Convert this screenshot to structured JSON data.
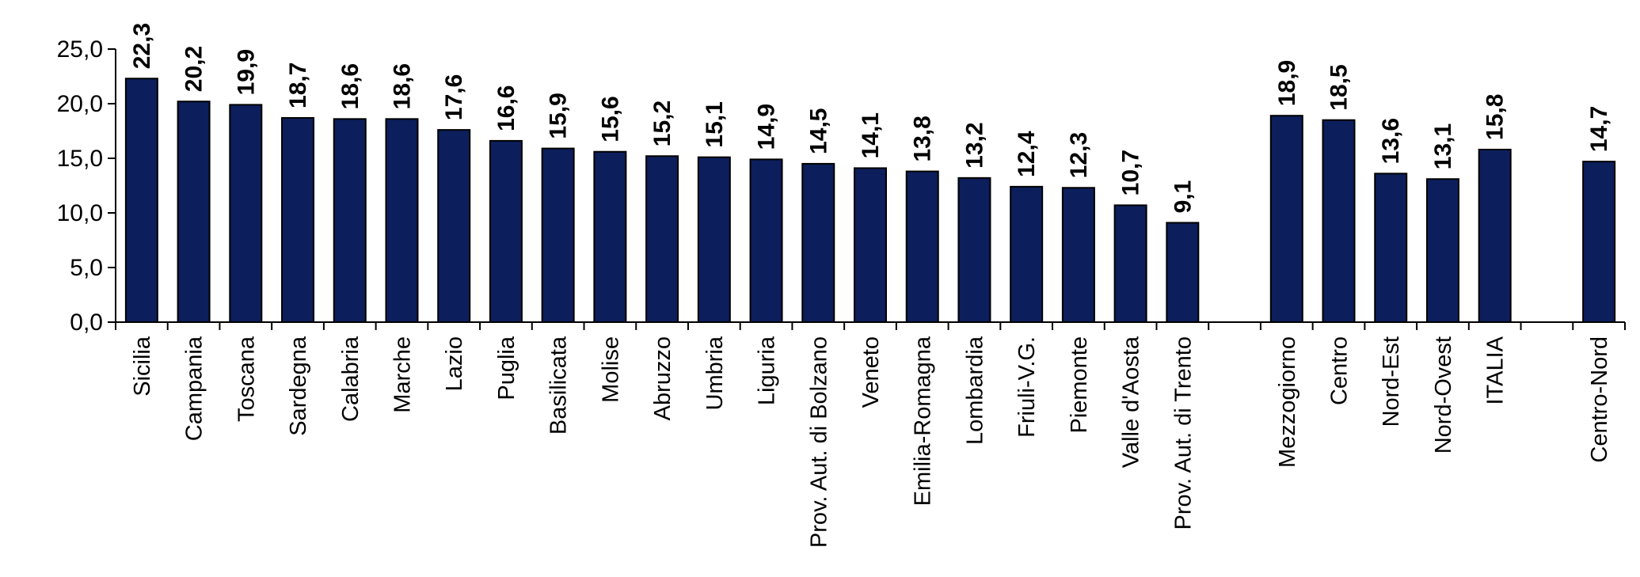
{
  "chart_data": {
    "type": "bar",
    "categories": [
      "Sicilia",
      "Campania",
      "Toscana",
      "Sardegna",
      "Calabria",
      "Marche",
      "Lazio",
      "Puglia",
      "Basilicata",
      "Molise",
      "Abruzzo",
      "Umbria",
      "Liguria",
      "Prov. Aut. di Bolzano",
      "Veneto",
      "Emilia-Romagna",
      "Lombardia",
      "Friuli-V.G.",
      "Piemonte",
      "Valle d'Aosta",
      "Prov. Aut. di Trento",
      "",
      "Mezzogiorno",
      "Centro",
      "Nord-Est",
      "Nord-Ovest",
      "ITALIA",
      "",
      "Centro-Nord"
    ],
    "values": [
      22.3,
      20.2,
      19.9,
      18.7,
      18.6,
      18.6,
      17.6,
      16.6,
      15.9,
      15.6,
      15.2,
      15.1,
      14.9,
      14.5,
      14.1,
      13.8,
      13.2,
      12.4,
      12.3,
      10.7,
      9.1,
      null,
      18.9,
      18.5,
      13.6,
      13.1,
      15.8,
      null,
      14.7
    ],
    "value_labels": [
      "22,3",
      "20,2",
      "19,9",
      "18,7",
      "18,6",
      "18,6",
      "17,6",
      "16,6",
      "15,9",
      "15,6",
      "15,2",
      "15,1",
      "14,9",
      "14,5",
      "14,1",
      "13,8",
      "13,2",
      "12,4",
      "12,3",
      "10,7",
      "9,1",
      "",
      "18,9",
      "18,5",
      "13,6",
      "13,1",
      "15,8",
      "",
      "14,7"
    ],
    "ylim": [
      0,
      25
    ],
    "yticks": [
      0,
      5,
      10,
      15,
      20,
      25
    ],
    "ytick_labels": [
      "0,0",
      "5,0",
      "10,0",
      "15,0",
      "20,0",
      "25,0"
    ],
    "title": "",
    "xlabel": "",
    "ylabel": "",
    "grid": false,
    "bar_color": "#0c1f5c"
  }
}
